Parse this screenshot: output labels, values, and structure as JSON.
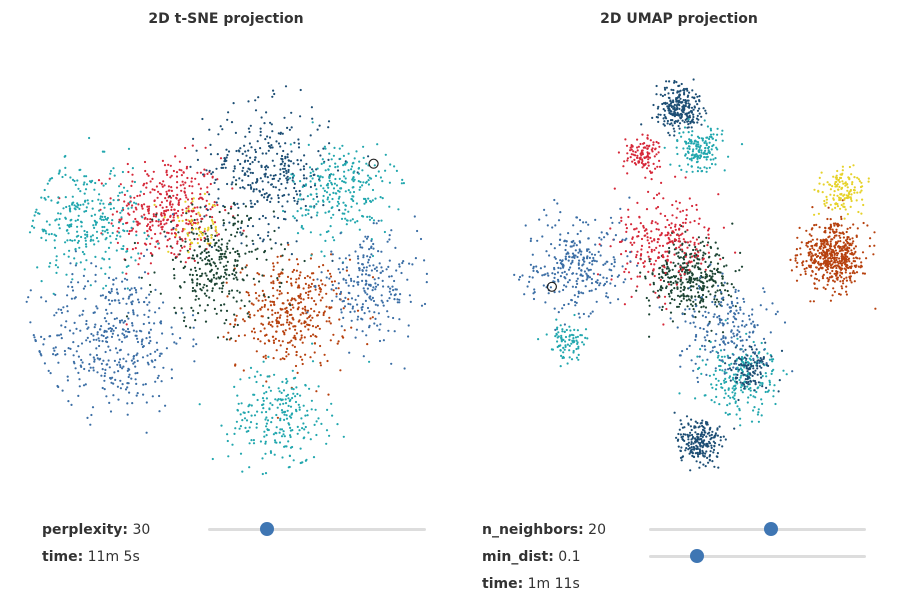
{
  "tsne": {
    "title": "2D t-SNE projection",
    "controls": {
      "perplexity": {
        "label": "perplexity:",
        "value": "30",
        "fraction": 0.27
      },
      "time": {
        "label": "time:",
        "value": "11m 5s"
      }
    }
  },
  "umap": {
    "title": "2D UMAP projection",
    "controls": {
      "n_neighbors": {
        "label": "n_neighbors:",
        "value": "20",
        "fraction": 0.56
      },
      "min_dist": {
        "label": "min_dist:",
        "value": "0.1",
        "fraction": 0.22
      },
      "time": {
        "label": "time:",
        "value": "1m 11s"
      }
    }
  },
  "colors": {
    "dark_green": "#1b4332",
    "red": "#d62839",
    "teal": "#22a7ae",
    "steel_blue": "#3b6ea5",
    "navy": "#1d4e74",
    "brown_red": "#b7410e",
    "yellow": "#e6d22a",
    "slider_track": "#dddddd",
    "slider_thumb": "#3f76b3"
  },
  "chart_data": [
    {
      "type": "scatter",
      "title": "2D t-SNE projection",
      "xlabel": "",
      "ylabel": "",
      "grid": false,
      "axes": false,
      "clusters": [
        {
          "color": "#d62839",
          "x": -0.28,
          "y": 0.32,
          "spread": 0.24,
          "count": 380
        },
        {
          "color": "#b7410e",
          "x": 0.32,
          "y": -0.18,
          "spread": 0.24,
          "count": 380
        },
        {
          "color": "#3b6ea5",
          "x": -0.55,
          "y": -0.3,
          "spread": 0.32,
          "count": 420
        },
        {
          "color": "#1d4e74",
          "x": 0.2,
          "y": 0.52,
          "spread": 0.28,
          "count": 360
        },
        {
          "color": "#22a7ae",
          "x": -0.68,
          "y": 0.28,
          "spread": 0.25,
          "count": 300
        },
        {
          "color": "#22a7ae",
          "x": 0.56,
          "y": 0.42,
          "spread": 0.22,
          "count": 260
        },
        {
          "color": "#22a7ae",
          "x": 0.26,
          "y": -0.68,
          "spread": 0.22,
          "count": 240
        },
        {
          "color": "#1b4332",
          "x": -0.05,
          "y": 0.05,
          "spread": 0.26,
          "count": 320
        },
        {
          "color": "#3b6ea5",
          "x": 0.7,
          "y": -0.05,
          "spread": 0.22,
          "count": 240
        },
        {
          "color": "#e6d22a",
          "x": -0.15,
          "y": 0.24,
          "spread": 0.12,
          "count": 60
        }
      ],
      "highlight": {
        "x": 0.72,
        "y": 0.55
      }
    },
    {
      "type": "scatter",
      "title": "2D UMAP projection",
      "xlabel": "",
      "ylabel": "",
      "grid": false,
      "axes": false,
      "clusters": [
        {
          "color": "#b7410e",
          "x": 0.75,
          "y": 0.1,
          "spread": 0.14,
          "count": 520
        },
        {
          "color": "#e6d22a",
          "x": 0.8,
          "y": 0.42,
          "spread": 0.1,
          "count": 140
        },
        {
          "color": "#1d4e74",
          "x": 0.0,
          "y": 0.82,
          "spread": 0.1,
          "count": 260
        },
        {
          "color": "#22a7ae",
          "x": 0.1,
          "y": 0.62,
          "spread": 0.1,
          "count": 160
        },
        {
          "color": "#d62839",
          "x": -0.18,
          "y": 0.6,
          "spread": 0.07,
          "count": 110
        },
        {
          "color": "#1b4332",
          "x": 0.05,
          "y": 0.0,
          "spread": 0.18,
          "count": 380
        },
        {
          "color": "#d62839",
          "x": -0.08,
          "y": 0.18,
          "spread": 0.22,
          "count": 260
        },
        {
          "color": "#3b6ea5",
          "x": -0.5,
          "y": 0.05,
          "spread": 0.22,
          "count": 300
        },
        {
          "color": "#22a7ae",
          "x": -0.55,
          "y": -0.32,
          "spread": 0.08,
          "count": 90
        },
        {
          "color": "#22a7ae",
          "x": 0.3,
          "y": -0.5,
          "spread": 0.16,
          "count": 220
        },
        {
          "color": "#1d4e74",
          "x": 0.1,
          "y": -0.8,
          "spread": 0.1,
          "count": 220
        },
        {
          "color": "#1d4e74",
          "x": 0.35,
          "y": -0.45,
          "spread": 0.1,
          "count": 120
        },
        {
          "color": "#3b6ea5",
          "x": 0.22,
          "y": -0.25,
          "spread": 0.2,
          "count": 200
        }
      ],
      "highlight": {
        "x": -0.62,
        "y": -0.05
      }
    }
  ]
}
